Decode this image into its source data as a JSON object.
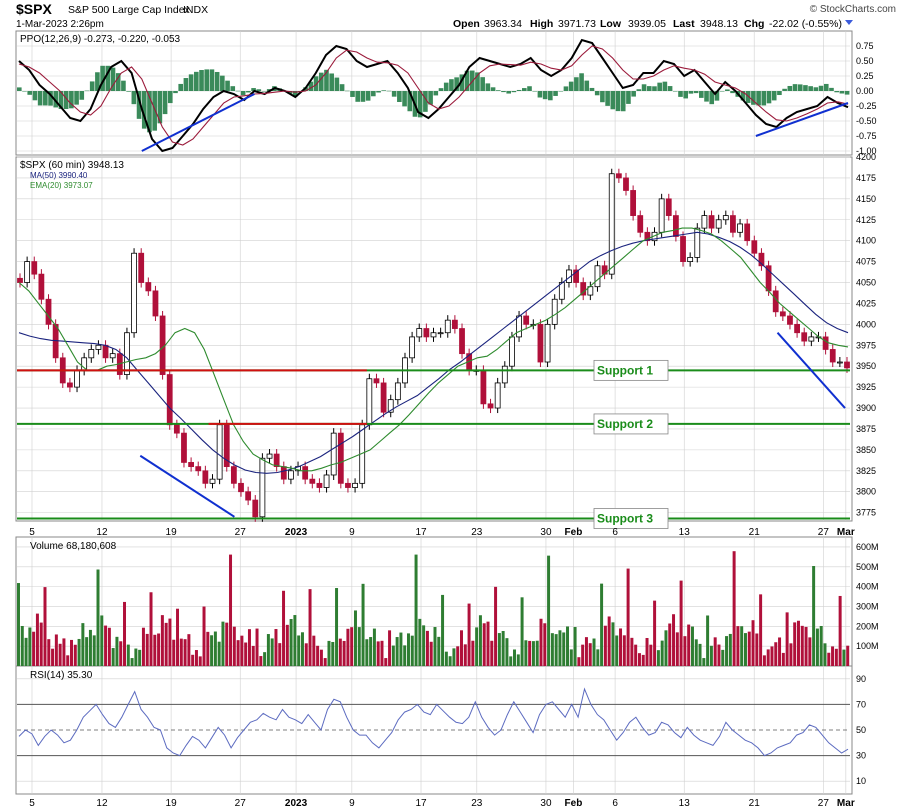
{
  "header": {
    "symbol": "$SPX",
    "name": "S&P 500 Large Cap Index",
    "exchange": "INDX",
    "watermark": "© StockCharts.com",
    "date": "1-Mar-2023 2:26pm",
    "open_label": "Open",
    "open": "3963.34",
    "high_label": "High",
    "high": "3971.73",
    "low_label": "Low",
    "low": "3939.05",
    "last_label": "Last",
    "last": "3948.13",
    "chg_label": "Chg",
    "chg": "-22.02 (-0.55%)"
  },
  "colors": {
    "up": "#2e7d32",
    "down": "#b0103a",
    "ma50": "#1a237e",
    "ema20": "#2e8b2e",
    "support_red": "#d01010",
    "support_green": "#1a8c1a",
    "trend": "#1030d0",
    "grid": "#d0d0d0",
    "hist": "#3a8a5a",
    "rsi_line": "#5c6bc0",
    "rsi_fill": "#8fb0c8"
  },
  "x_axis_labels": [
    "5",
    "12",
    "19",
    "27",
    "2023",
    "9",
    "17",
    "23",
    "30",
    "Feb",
    "6",
    "13",
    "21",
    "27",
    "Mar"
  ],
  "chart_data": [
    {
      "panel": "ppo",
      "type": "line",
      "title_text": "PPO(12,26,9) -0.273, -0.220, -0.053",
      "series": [
        {
          "name": "PPO(12,26,9)",
          "value": -0.273
        },
        {
          "name": "signal",
          "value": -0.22
        },
        {
          "name": "histogram",
          "value": -0.053
        }
      ],
      "ylim": [
        -1.0,
        0.9
      ],
      "yticks": [
        "0.75",
        "0.50",
        "0.25",
        "0.00",
        "-0.25",
        "-0.50",
        "-0.75",
        "-1.00"
      ],
      "ppo_points": [
        0.5,
        0.35,
        0.1,
        -0.05,
        -0.25,
        -0.45,
        -0.5,
        -0.3,
        0.1,
        0.4,
        0.5,
        0.3,
        -0.3,
        -0.8,
        -1.0,
        -0.95,
        -0.75,
        -0.55,
        -0.3,
        -0.1,
        0.0,
        -0.05,
        -0.15,
        0.0,
        -0.05,
        0.05,
        0.0,
        -0.1,
        0.05,
        0.3,
        0.6,
        0.75,
        0.7,
        0.5,
        0.4,
        0.45,
        0.5,
        0.3,
        0.05,
        -0.35,
        -0.45,
        -0.3,
        -0.1,
        0.1,
        0.4,
        0.55,
        0.5,
        0.45,
        0.4,
        0.45,
        0.55,
        0.35,
        0.25,
        0.35,
        0.55,
        0.85,
        0.8,
        0.55,
        0.3,
        0.05,
        0.1,
        0.3,
        0.3,
        0.5,
        0.45,
        0.25,
        0.35,
        0.15,
        -0.05,
        0.15,
        0.0,
        -0.2,
        -0.4,
        -0.55,
        -0.6,
        -0.45,
        -0.35,
        -0.3,
        -0.25,
        -0.1,
        -0.2,
        -0.27
      ],
      "signal_points": [
        0.45,
        0.4,
        0.3,
        0.15,
        0.0,
        -0.2,
        -0.35,
        -0.4,
        -0.25,
        0.05,
        0.3,
        0.4,
        0.2,
        -0.2,
        -0.6,
        -0.85,
        -0.9,
        -0.8,
        -0.6,
        -0.4,
        -0.2,
        -0.1,
        -0.08,
        -0.05,
        -0.04,
        -0.02,
        0.0,
        -0.02,
        0.0,
        0.1,
        0.3,
        0.55,
        0.68,
        0.65,
        0.55,
        0.48,
        0.47,
        0.43,
        0.3,
        0.05,
        -0.2,
        -0.3,
        -0.25,
        -0.1,
        0.1,
        0.3,
        0.42,
        0.45,
        0.44,
        0.43,
        0.48,
        0.45,
        0.38,
        0.35,
        0.42,
        0.6,
        0.75,
        0.7,
        0.55,
        0.35,
        0.2,
        0.2,
        0.25,
        0.35,
        0.42,
        0.38,
        0.35,
        0.28,
        0.15,
        0.1,
        0.05,
        -0.05,
        -0.2,
        -0.35,
        -0.48,
        -0.5,
        -0.45,
        -0.38,
        -0.3,
        -0.2,
        -0.18,
        -0.22
      ],
      "trendlines": [
        {
          "from": [
            12,
            -1.0
          ],
          "to": [
            23,
            -0.05
          ]
        },
        {
          "from": [
            72,
            -0.75
          ],
          "to": [
            81,
            -0.2
          ]
        }
      ]
    },
    {
      "panel": "price",
      "type": "candlestick",
      "title_text": "$SPX (60 min) 3948.13",
      "legend": [
        {
          "name": "MA(50) 3990.40",
          "color": "#1a237e"
        },
        {
          "name": "EMA(20) 3973.07",
          "color": "#2e8b2e"
        }
      ],
      "ylim": [
        3765,
        4200
      ],
      "yticks": [
        4200,
        4175,
        4150,
        4125,
        4100,
        4075,
        4050,
        4025,
        4000,
        3975,
        3950,
        3925,
        3900,
        3875,
        3850,
        3825,
        3800,
        3775
      ],
      "close": [
        4050,
        4075,
        4060,
        4030,
        4000,
        3960,
        3930,
        3925,
        3945,
        3960,
        3970,
        3975,
        3960,
        3965,
        3940,
        3990,
        4085,
        4050,
        4040,
        4010,
        3940,
        3880,
        3870,
        3835,
        3830,
        3825,
        3810,
        3815,
        3880,
        3830,
        3810,
        3800,
        3790,
        3770,
        3840,
        3845,
        3830,
        3815,
        3825,
        3830,
        3815,
        3810,
        3805,
        3820,
        3870,
        3810,
        3805,
        3810,
        3880,
        3935,
        3930,
        3895,
        3910,
        3930,
        3960,
        3985,
        3995,
        3985,
        3990,
        3990,
        4005,
        3995,
        3965,
        3945,
        3945,
        3905,
        3900,
        3930,
        3950,
        3985,
        4010,
        4000,
        4000,
        3955,
        4000,
        4030,
        4050,
        4065,
        4050,
        4035,
        4045,
        4070,
        4060,
        4180,
        4175,
        4160,
        4130,
        4110,
        4100,
        4110,
        4150,
        4130,
        4105,
        4075,
        4080,
        4115,
        4130,
        4115,
        4125,
        4130,
        4110,
        4120,
        4100,
        4085,
        4070,
        4040,
        4015,
        4010,
        4000,
        3990,
        3980,
        3985,
        3985,
        3970,
        3955,
        3955,
        3948
      ],
      "ma50": [
        3990,
        3986,
        3983,
        3981,
        3980,
        3979,
        3978,
        3977,
        3975,
        3970,
        3960,
        3945,
        3930,
        3915,
        3900,
        3888,
        3875,
        3862,
        3850,
        3840,
        3832,
        3826,
        3823,
        3822,
        3823,
        3826,
        3830,
        3836,
        3842,
        3850,
        3858,
        3866,
        3875,
        3884,
        3893,
        3901,
        3908,
        3915,
        3925,
        3935,
        3946,
        3955,
        3965,
        3975,
        3985,
        3995,
        4005,
        4015,
        4025,
        4035,
        4045,
        4055,
        4065,
        4075,
        4082,
        4088,
        4093,
        4097,
        4100,
        4102,
        4104,
        4106,
        4108,
        4110,
        4108,
        4104,
        4099,
        4092,
        4083,
        4072,
        4060,
        4048,
        4036,
        4024,
        4012,
        4002,
        3995,
        3990
      ],
      "ema20": [
        4050,
        4040,
        4025,
        4010,
        3995,
        3975,
        3955,
        3945,
        3945,
        3950,
        3952,
        3955,
        3958,
        3960,
        3965,
        3975,
        3990,
        3995,
        3990,
        3970,
        3940,
        3910,
        3880,
        3860,
        3845,
        3838,
        3832,
        3830,
        3828,
        3825,
        3825,
        3828,
        3832,
        3835,
        3840,
        3845,
        3850,
        3860,
        3870,
        3880,
        3892,
        3905,
        3918,
        3930,
        3940,
        3950,
        3955,
        3960,
        3962,
        3970,
        3980,
        3990,
        3995,
        4000,
        4005,
        4012,
        4020,
        4030,
        4040,
        4050,
        4060,
        4070,
        4080,
        4090,
        4100,
        4105,
        4110,
        4112,
        4115,
        4115,
        4112,
        4108,
        4100,
        4090,
        4080,
        4065,
        4050,
        4038,
        4025,
        4015,
        4005,
        3995,
        3985,
        3978,
        3975,
        3973
      ],
      "support_lines": [
        {
          "label": "Support 1",
          "value": 3945,
          "color": "#1a8c1a"
        },
        {
          "label": "Support 2",
          "value": 3881,
          "color": "#1a8c1a"
        },
        {
          "label": "Support 3",
          "value": 3768,
          "color": "#1a8c1a"
        }
      ],
      "resistance_lines": [
        {
          "value": 3945,
          "from": 0.0,
          "to": 0.42,
          "color": "#d01010"
        },
        {
          "value": 3881,
          "from": 0.23,
          "to": 0.42,
          "color": "#d01010"
        }
      ],
      "trendlines": [
        {
          "from": [
            0.148,
            3843
          ],
          "to": [
            0.261,
            3770
          ]
        },
        {
          "from": [
            0.913,
            3990
          ],
          "to": [
            0.994,
            3900
          ]
        }
      ]
    },
    {
      "panel": "volume",
      "type": "bar",
      "title_text": "Volume 68,180,608",
      "ylim": [
        0,
        650
      ],
      "yticks": [
        "600M",
        "500M",
        "400M",
        "300M",
        "200M",
        "100M"
      ]
    },
    {
      "panel": "rsi",
      "type": "line",
      "title_text": "RSI(14) 35.30",
      "ylim": [
        0,
        100
      ],
      "yticks": [
        90,
        70,
        50,
        30,
        10
      ],
      "bands": [
        70,
        50,
        30
      ],
      "points": [
        45,
        50,
        47,
        38,
        45,
        50,
        46,
        40,
        42,
        50,
        60,
        65,
        70,
        62,
        55,
        52,
        60,
        70,
        80,
        66,
        60,
        52,
        50,
        36,
        32,
        30,
        38,
        45,
        42,
        36,
        44,
        52,
        46,
        36,
        44,
        50,
        56,
        58,
        63,
        60,
        58,
        66,
        60,
        58,
        55,
        62,
        56,
        50,
        66,
        74,
        72,
        60,
        50,
        46,
        46,
        40,
        36,
        42,
        48,
        58,
        64,
        66,
        70,
        64,
        62,
        70,
        65,
        60,
        56,
        55,
        60,
        72,
        60,
        52,
        46,
        50,
        62,
        72,
        64,
        56,
        48,
        62,
        70,
        72,
        66,
        60,
        70,
        60,
        82,
        70,
        62,
        58,
        50,
        42,
        48,
        56,
        60,
        52,
        46,
        48,
        56,
        54,
        48,
        44,
        52,
        46,
        42,
        40,
        38,
        45,
        56,
        50,
        46,
        42,
        40,
        36,
        30,
        32,
        36,
        38,
        40,
        46,
        48,
        54,
        52,
        46,
        40,
        36,
        32,
        35
      ]
    }
  ]
}
